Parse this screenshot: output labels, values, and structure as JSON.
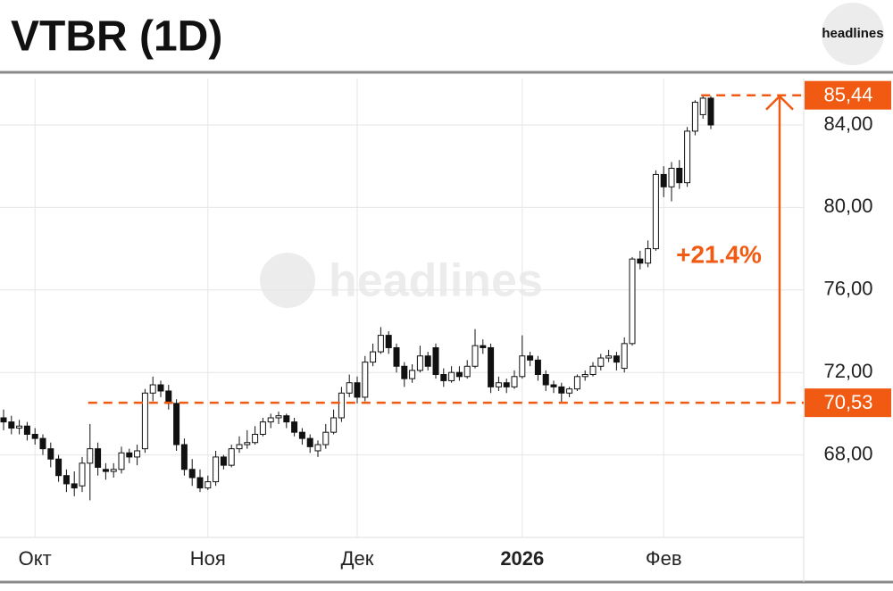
{
  "logo": "headlines",
  "watermark": "headlines",
  "chart_data": {
    "type": "candlestick",
    "title": "VTBR (1D)",
    "categories": [
      null,
      null,
      null,
      null,
      "Окт",
      null,
      null,
      null,
      null,
      null,
      null,
      null,
      null,
      null,
      null,
      null,
      null,
      null,
      null,
      null,
      null,
      null,
      null,
      null,
      null,
      null,
      "Ноя",
      null,
      null,
      null,
      null,
      null,
      null,
      null,
      null,
      null,
      null,
      null,
      null,
      null,
      null,
      null,
      null,
      null,
      null,
      "Дек",
      null,
      null,
      null,
      null,
      null,
      null,
      null,
      null,
      null,
      null,
      null,
      null,
      null,
      null,
      null,
      null,
      null,
      null,
      null,
      null,
      "2026",
      null,
      null,
      null,
      null,
      null,
      null,
      null,
      null,
      null,
      null,
      null,
      null,
      null,
      null,
      null,
      null,
      null,
      "Фев",
      null,
      null,
      null,
      null,
      null,
      null
    ],
    "open": [
      69.8,
      69.6,
      69.3,
      69.4,
      69.0,
      68.8,
      68.3,
      67.8,
      67.0,
      66.6,
      66.5,
      67.6,
      68.3,
      67.3,
      67.2,
      67.3,
      68.1,
      67.9,
      68.3,
      71.0,
      71.4,
      71.1,
      70.5,
      68.5,
      67.3,
      66.9,
      66.4,
      66.7,
      67.9,
      67.5,
      68.3,
      68.5,
      68.6,
      69.0,
      69.6,
      69.8,
      69.9,
      69.6,
      69.1,
      68.8,
      68.2,
      68.5,
      69.1,
      69.8,
      71.0,
      71.5,
      70.8,
      72.5,
      73.0,
      73.8,
      73.2,
      72.3,
      71.7,
      72.1,
      72.8,
      73.2,
      71.9,
      71.6,
      72.0,
      71.8,
      72.3,
      73.3,
      73.2,
      71.3,
      71.5,
      71.3,
      71.8,
      72.8,
      72.6,
      71.9,
      71.4,
      71.3,
      71.0,
      71.2,
      71.8,
      71.9,
      72.3,
      72.7,
      72.8,
      72.2,
      73.4,
      77.5,
      77.3,
      78.0,
      81.6,
      81.0,
      81.9,
      81.2,
      83.7,
      84.5,
      85.3
    ],
    "high": [
      70.2,
      69.9,
      69.7,
      69.6,
      69.3,
      69.0,
      68.6,
      68.0,
      67.3,
      67.2,
      67.9,
      69.5,
      68.6,
      67.6,
      67.6,
      68.4,
      68.3,
      68.5,
      71.2,
      71.8,
      71.6,
      71.4,
      70.7,
      68.8,
      67.8,
      67.3,
      67.0,
      68.2,
      68.0,
      68.5,
      68.9,
      69.2,
      69.4,
      69.8,
      70.0,
      70.1,
      70.0,
      69.8,
      69.3,
      69.0,
      68.7,
      69.5,
      70.2,
      71.3,
      71.9,
      71.8,
      72.8,
      73.4,
      74.2,
      74.0,
      73.4,
      72.5,
      72.4,
      73.3,
      73.0,
      73.4,
      72.2,
      72.3,
      72.3,
      72.6,
      74.1,
      73.6,
      73.4,
      71.8,
      71.7,
      72.1,
      73.8,
      73.0,
      72.8,
      72.1,
      71.6,
      71.5,
      71.3,
      71.9,
      72.1,
      72.5,
      72.9,
      73.1,
      73.0,
      73.7,
      77.6,
      77.9,
      78.4,
      81.8,
      82.0,
      82.2,
      82.3,
      83.9,
      85.2,
      85.44,
      85.4
    ],
    "low": [
      69.2,
      69.0,
      69.0,
      68.7,
      68.5,
      68.0,
      67.4,
      66.7,
      66.2,
      66.0,
      66.2,
      65.8,
      67.0,
      66.8,
      66.9,
      67.1,
      67.6,
      67.5,
      68.1,
      70.6,
      70.8,
      70.2,
      68.2,
      67.0,
      66.5,
      66.2,
      66.3,
      66.5,
      67.3,
      67.4,
      68.1,
      68.3,
      68.5,
      68.9,
      69.3,
      69.5,
      69.3,
      68.9,
      68.5,
      68.1,
      67.9,
      68.3,
      69.0,
      69.6,
      70.8,
      70.5,
      70.6,
      72.3,
      72.9,
      72.9,
      72.0,
      71.3,
      71.5,
      72.0,
      72.1,
      71.7,
      71.3,
      71.5,
      71.6,
      71.7,
      72.2,
      72.9,
      71.0,
      71.1,
      71.0,
      71.2,
      71.7,
      72.3,
      71.6,
      71.1,
      71.0,
      70.53,
      70.8,
      71.1,
      71.6,
      71.8,
      72.1,
      72.5,
      72.1,
      72.0,
      73.3,
      77.0,
      77.1,
      77.9,
      80.5,
      80.3,
      80.9,
      81.0,
      83.5,
      84.3,
      83.8
    ],
    "close": [
      69.6,
      69.3,
      69.4,
      69.0,
      68.8,
      68.3,
      67.8,
      67.0,
      66.6,
      66.4,
      67.6,
      68.3,
      67.4,
      67.2,
      67.3,
      68.1,
      67.9,
      68.2,
      71.0,
      71.4,
      71.1,
      70.5,
      68.5,
      67.3,
      66.9,
      66.4,
      66.7,
      67.9,
      67.5,
      68.3,
      68.5,
      68.6,
      69.0,
      69.6,
      69.8,
      69.9,
      69.6,
      69.1,
      68.8,
      68.4,
      68.5,
      69.1,
      69.8,
      71.0,
      71.5,
      70.8,
      72.5,
      73.0,
      73.8,
      73.2,
      72.3,
      71.7,
      72.1,
      72.8,
      72.3,
      71.9,
      71.6,
      72.0,
      71.8,
      72.3,
      73.3,
      73.2,
      71.3,
      71.5,
      71.3,
      71.8,
      72.8,
      72.6,
      71.9,
      71.4,
      71.3,
      71.0,
      71.2,
      71.8,
      71.9,
      72.3,
      72.7,
      72.8,
      72.5,
      73.4,
      77.5,
      77.3,
      78.0,
      81.6,
      81.0,
      81.9,
      81.2,
      83.7,
      85.1,
      85.3,
      84.0
    ],
    "up_color": "#ffffff",
    "down_color": "#111111",
    "accent_color": "#f05a12",
    "ylim": [
      64,
      86.25
    ],
    "yticks": [
      {
        "value": 68,
        "label": "68,00"
      },
      {
        "value": 72,
        "label": "72,00"
      },
      {
        "value": 76,
        "label": "76,00"
      },
      {
        "value": 80,
        "label": "80,00"
      },
      {
        "value": 84,
        "label": "84,00"
      }
    ],
    "grid": true,
    "high_label": {
      "value": 85.44,
      "label": "85,44"
    },
    "low_label": {
      "value": 70.53,
      "label": "70,53"
    },
    "change_label": "+21.4%"
  }
}
